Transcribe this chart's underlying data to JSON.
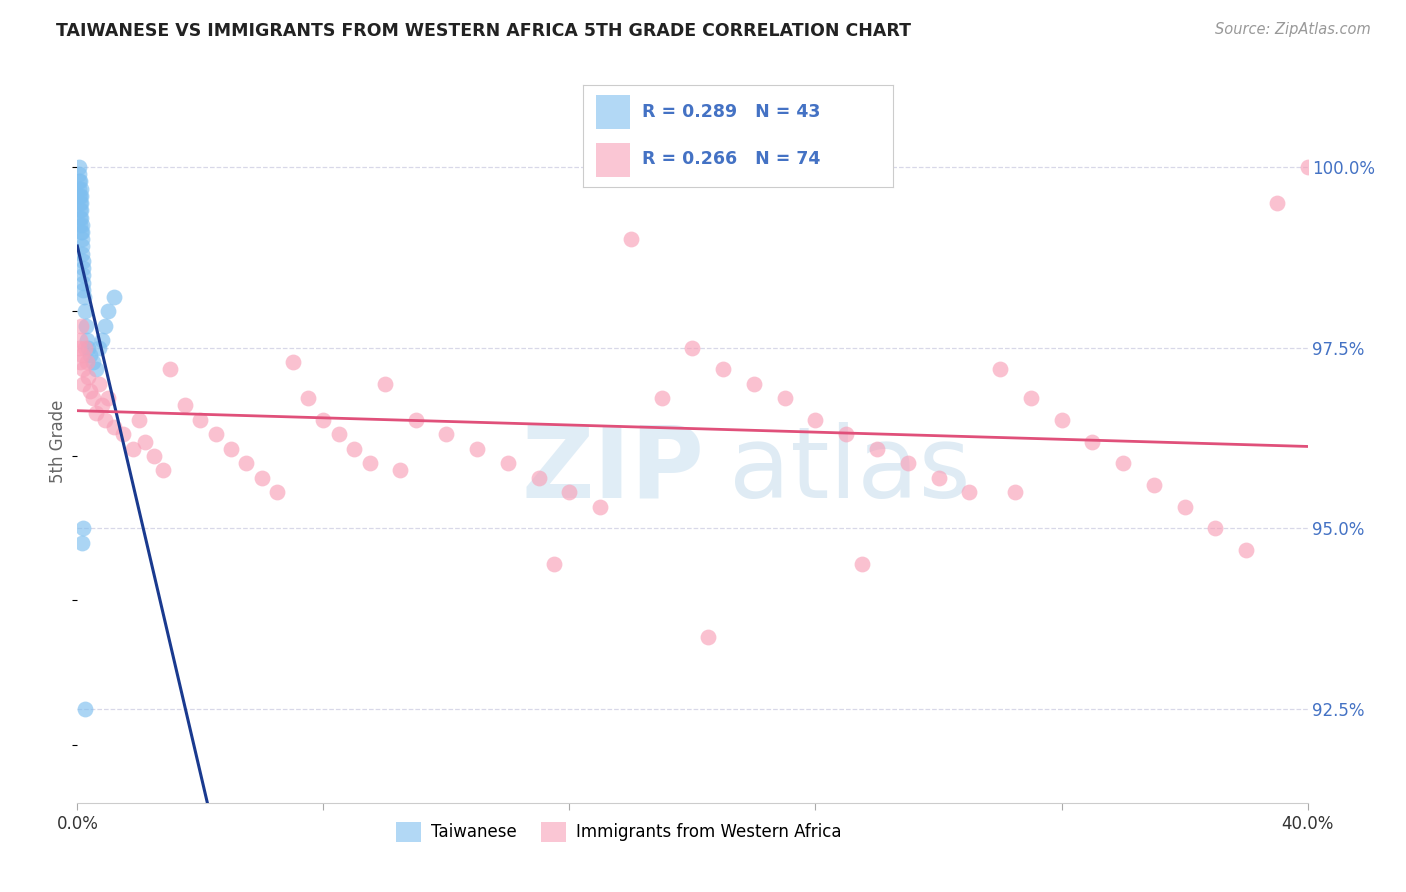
{
  "title": "TAIWANESE VS IMMIGRANTS FROM WESTERN AFRICA 5TH GRADE CORRELATION CHART",
  "source": "Source: ZipAtlas.com",
  "ylabel": "5th Grade",
  "ytick_labels": [
    "92.5%",
    "95.0%",
    "97.5%",
    "100.0%"
  ],
  "ytick_values": [
    92.5,
    95.0,
    97.5,
    100.0
  ],
  "xmin": 0.0,
  "xmax": 40.0,
  "ymin": 91.2,
  "ymax": 101.2,
  "legend_label_blue": "Taiwanese",
  "legend_label_pink": "Immigrants from Western Africa",
  "blue_color": "#7fbfef",
  "pink_color": "#f8a0b8",
  "blue_line_color": "#1a3a8f",
  "pink_line_color": "#e0507a",
  "blue_scatter_x": [
    0.05,
    0.05,
    0.05,
    0.07,
    0.07,
    0.08,
    0.08,
    0.09,
    0.1,
    0.1,
    0.1,
    0.11,
    0.11,
    0.12,
    0.12,
    0.13,
    0.13,
    0.14,
    0.14,
    0.15,
    0.15,
    0.16,
    0.17,
    0.18,
    0.18,
    0.2,
    0.2,
    0.22,
    0.25,
    0.28,
    0.3,
    0.35,
    0.4,
    0.5,
    0.6,
    0.7,
    0.8,
    0.9,
    1.0,
    1.2,
    0.15,
    0.2,
    0.25
  ],
  "blue_scatter_y": [
    100.0,
    99.8,
    99.6,
    99.9,
    99.7,
    99.5,
    99.3,
    99.8,
    99.6,
    99.4,
    99.2,
    99.7,
    99.5,
    99.3,
    99.1,
    99.6,
    99.4,
    99.2,
    99.0,
    98.8,
    99.1,
    98.9,
    98.7,
    98.5,
    98.3,
    98.6,
    98.4,
    98.2,
    98.0,
    97.8,
    97.6,
    97.5,
    97.4,
    97.3,
    97.2,
    97.5,
    97.6,
    97.8,
    98.0,
    98.2,
    94.8,
    95.0,
    92.5
  ],
  "pink_scatter_x": [
    0.05,
    0.08,
    0.1,
    0.12,
    0.15,
    0.18,
    0.2,
    0.25,
    0.3,
    0.35,
    0.4,
    0.5,
    0.6,
    0.7,
    0.8,
    0.9,
    1.0,
    1.2,
    1.5,
    1.8,
    2.0,
    2.2,
    2.5,
    2.8,
    3.0,
    3.5,
    4.0,
    4.5,
    5.0,
    5.5,
    6.0,
    6.5,
    7.0,
    7.5,
    8.0,
    8.5,
    9.0,
    9.5,
    10.0,
    11.0,
    12.0,
    13.0,
    14.0,
    15.0,
    16.0,
    17.0,
    18.0,
    19.0,
    20.0,
    21.0,
    22.0,
    23.0,
    24.0,
    25.0,
    26.0,
    27.0,
    28.0,
    29.0,
    30.0,
    31.0,
    32.0,
    33.0,
    34.0,
    35.0,
    36.0,
    37.0,
    38.0,
    39.0,
    40.0,
    10.5,
    15.5,
    20.5,
    25.5,
    30.5
  ],
  "pink_scatter_y": [
    97.5,
    97.3,
    97.6,
    97.8,
    97.4,
    97.2,
    97.0,
    97.5,
    97.3,
    97.1,
    96.9,
    96.8,
    96.6,
    97.0,
    96.7,
    96.5,
    96.8,
    96.4,
    96.3,
    96.1,
    96.5,
    96.2,
    96.0,
    95.8,
    97.2,
    96.7,
    96.5,
    96.3,
    96.1,
    95.9,
    95.7,
    95.5,
    97.3,
    96.8,
    96.5,
    96.3,
    96.1,
    95.9,
    97.0,
    96.5,
    96.3,
    96.1,
    95.9,
    95.7,
    95.5,
    95.3,
    99.0,
    96.8,
    97.5,
    97.2,
    97.0,
    96.8,
    96.5,
    96.3,
    96.1,
    95.9,
    95.7,
    95.5,
    97.2,
    96.8,
    96.5,
    96.2,
    95.9,
    95.6,
    95.3,
    95.0,
    94.7,
    99.5,
    100.0,
    95.8,
    94.5,
    93.5,
    94.5,
    95.5
  ],
  "watermark_zip": "ZIP",
  "watermark_atlas": "atlas",
  "background_color": "#ffffff",
  "grid_color": "#d8d8e8",
  "title_color": "#222222",
  "source_color": "#999999",
  "ylabel_color": "#666666",
  "yticklabel_color": "#4472c4",
  "xticklabel_color": "#333333"
}
